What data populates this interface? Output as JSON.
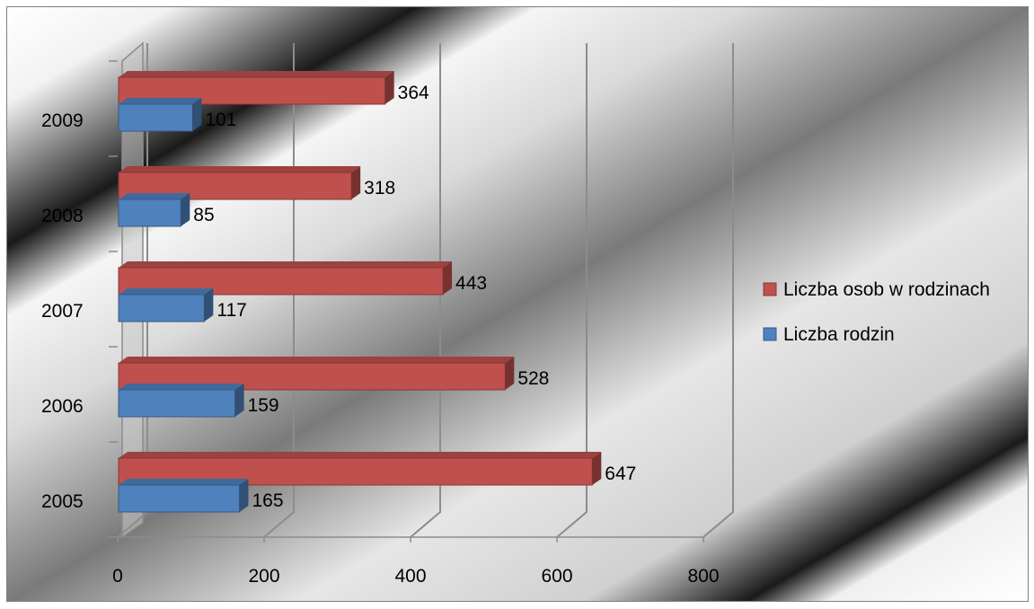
{
  "chart_data": {
    "type": "bar",
    "orientation": "horizontal",
    "style": "3d-clustered",
    "categories": [
      "2005",
      "2006",
      "2007",
      "2008",
      "2009"
    ],
    "series": [
      {
        "name": "Liczba osob w rodzinach",
        "values": [
          647,
          528,
          443,
          318,
          364
        ],
        "color": "#c0504d"
      },
      {
        "name": "Liczba rodzin",
        "values": [
          165,
          159,
          117,
          85,
          101
        ],
        "color": "#4f81bd"
      }
    ],
    "x_ticks": [
      "0",
      "200",
      "400",
      "600",
      "800"
    ],
    "xlim": [
      0,
      800
    ],
    "grid": true,
    "legend_position": "right",
    "data_labels": true,
    "title": "",
    "xlabel": "",
    "ylabel": ""
  }
}
